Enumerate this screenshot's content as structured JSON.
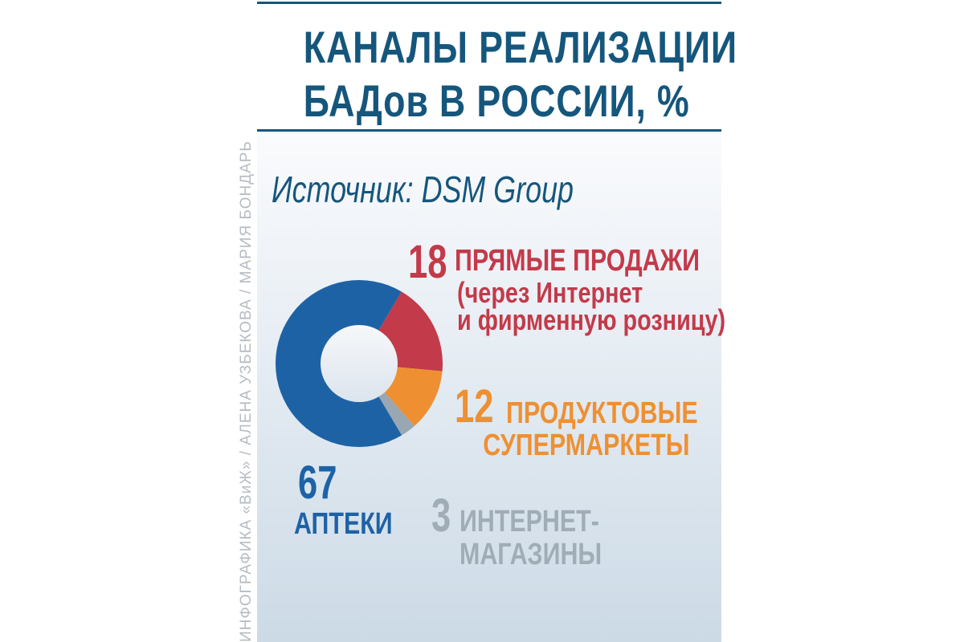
{
  "title": {
    "line1": "КАНАЛЫ РЕАЛИЗАЦИИ",
    "line2": "БАДов В РОССИИ, %"
  },
  "source_caption": "Источник: DSM Group",
  "credit": "ИНФОГРАФИКА «ВиЖ» / АЛЕНА УЗБЕКОВА / МАРИЯ БОНДАРЬ",
  "colors": {
    "title_blue": "#15567c",
    "rule": "#15567c",
    "slice_blue": "#1e62a6",
    "red": "#c33a4a",
    "orange": "#ee9032",
    "slice_gray": "#99a7b2",
    "text_gray": "#a0adb6",
    "credit_gray": "#b5bcc3",
    "panel_top": "#fafbfd",
    "panel_bottom": "#ccdae6",
    "hole_top": "#f6f8fa",
    "hole_bottom": "#dce4ed"
  },
  "chart_data": {
    "type": "pie",
    "variant": "donut",
    "title": "КАНАЛЫ РЕАЛИЗАЦИИ БАДов В РОССИИ, %",
    "source": "DSM Group",
    "unit": "%",
    "start_angle_deg": 30.5,
    "categories": [
      "ПРЯМЫЕ ПРОДАЖИ (через Интернет и фирменную розницу)",
      "ПРОДУКТОВЫЕ СУПЕРМАРКЕТЫ",
      "ИНТЕРНЕТ-МАГАЗИНЫ",
      "АПТЕКИ"
    ],
    "values": [
      18,
      12,
      3,
      67
    ],
    "slices": [
      {
        "id": "direct-sales",
        "label": "ПРЯМЫЕ ПРОДАЖИ (через Интернет и фирменную розницу)",
        "value": 18,
        "color": "#c33a4a"
      },
      {
        "id": "grocery-supermarkets",
        "label": "ПРОДУКТОВЫЕ СУПЕРМАРКЕТЫ",
        "value": 12,
        "color": "#ee9032"
      },
      {
        "id": "online-stores",
        "label": "ИНТЕРНЕТ-МАГАЗИНЫ",
        "value": 3,
        "color": "#99a7b2"
      },
      {
        "id": "pharmacies",
        "label": "АПТЕКИ",
        "value": 67,
        "color": "#1e62a6"
      }
    ],
    "legend_position": "callouts-around-donut",
    "grid": false
  },
  "callouts": {
    "direct_sales": {
      "value": "18",
      "title": "ПРЯМЫЕ ПРОДАЖИ",
      "sub1": "(через Интернет",
      "sub2": "и фирменную розницу)"
    },
    "grocery": {
      "value": "12",
      "title_line1": "ПРОДУКТОВЫЕ",
      "title_line2": "СУПЕРМАРКЕТЫ"
    },
    "pharmacies": {
      "value": "67",
      "title": "АПТЕКИ"
    },
    "online": {
      "value": "3",
      "title_line1": "ИНТЕРНЕТ-",
      "title_line2": "МАГАЗИНЫ"
    }
  }
}
